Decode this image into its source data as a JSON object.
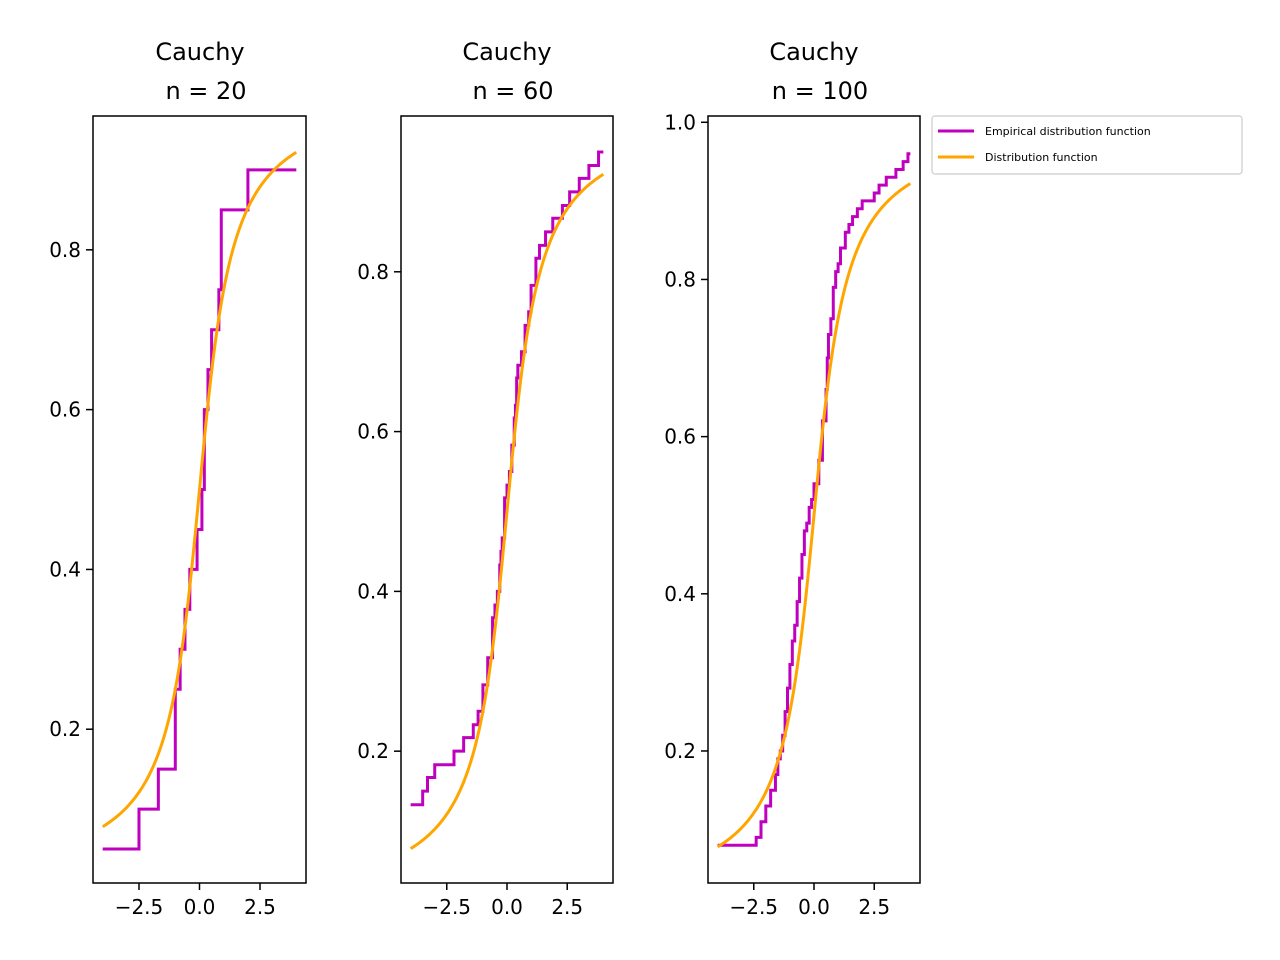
{
  "legend": {
    "entries": [
      {
        "label": "Empirical distribution function",
        "color": "#bf00bf"
      },
      {
        "label": "Distribution function",
        "color": "#ffa500"
      }
    ]
  },
  "chart_data": [
    {
      "type": "line",
      "title_line1": "Cauchy",
      "title_line2": "n = 20",
      "xlim": [
        -4.4,
        4.4
      ],
      "ylim": [
        0.0075,
        0.9675
      ],
      "xticks": [
        -2.5,
        0.0,
        2.5
      ],
      "xtick_labels": [
        "−2.5",
        "0.0",
        "2.5"
      ],
      "yticks": [
        0.2,
        0.4,
        0.6,
        0.8
      ],
      "ytick_labels": [
        "0.2",
        "0.4",
        "0.6",
        "0.8"
      ],
      "series": [
        {
          "name": "Empirical distribution function",
          "kind": "step",
          "x": [
            -4,
            -2.5,
            -1.7,
            -1.0,
            -0.8,
            -0.6,
            -0.4,
            -0.3,
            -0.1,
            0.1,
            0.2,
            0.35,
            0.5,
            0.8,
            0.9,
            2.0,
            4
          ],
          "y": [
            0.05,
            0.1,
            0.15,
            0.25,
            0.3,
            0.35,
            0.4,
            0.4,
            0.45,
            0.5,
            0.6,
            0.65,
            0.7,
            0.75,
            0.85,
            0.9,
            0.9
          ]
        },
        {
          "name": "Distribution function",
          "kind": "cauchy_cdf",
          "x_range": [
            -4,
            4
          ],
          "loc": 0,
          "scale": 1
        }
      ]
    },
    {
      "type": "line",
      "title_line1": "Cauchy",
      "title_line2": "n = 60",
      "xlim": [
        -4.4,
        4.4
      ],
      "ylim": [
        0.035,
        0.995
      ],
      "xticks": [
        -2.5,
        0.0,
        2.5
      ],
      "xtick_labels": [
        "−2.5",
        "0.0",
        "2.5"
      ],
      "yticks": [
        0.2,
        0.4,
        0.6,
        0.8
      ],
      "ytick_labels": [
        "0.2",
        "0.4",
        "0.6",
        "0.8"
      ],
      "series": [
        {
          "name": "Empirical distribution function",
          "kind": "step",
          "x": [
            -4,
            -3.5,
            -3.3,
            -3.0,
            -2.2,
            -1.8,
            -1.4,
            -1.2,
            -1.0,
            -0.8,
            -0.6,
            -0.5,
            -0.4,
            -0.3,
            -0.25,
            -0.2,
            -0.1,
            0.0,
            0.1,
            0.2,
            0.3,
            0.35,
            0.4,
            0.45,
            0.5,
            0.6,
            0.75,
            0.9,
            1.0,
            1.2,
            1.35,
            1.6,
            1.9,
            2.3,
            2.6,
            3.0,
            3.4,
            3.8,
            4
          ],
          "y": [
            0.133,
            0.15,
            0.167,
            0.183,
            0.2,
            0.217,
            0.233,
            0.25,
            0.283,
            0.317,
            0.367,
            0.383,
            0.4,
            0.433,
            0.45,
            0.467,
            0.517,
            0.533,
            0.55,
            0.583,
            0.617,
            0.633,
            0.667,
            0.683,
            0.683,
            0.7,
            0.733,
            0.75,
            0.783,
            0.817,
            0.833,
            0.85,
            0.867,
            0.883,
            0.9,
            0.917,
            0.933,
            0.95,
            0.95
          ]
        },
        {
          "name": "Distribution function",
          "kind": "cauchy_cdf",
          "x_range": [
            -4,
            4
          ],
          "loc": 0,
          "scale": 1
        }
      ]
    },
    {
      "type": "line",
      "title_line1": "Cauchy",
      "title_line2": "n = 100",
      "xlim": [
        -4.4,
        4.4
      ],
      "ylim": [
        0.032,
        1.008
      ],
      "xticks": [
        -2.5,
        0.0,
        2.5
      ],
      "xtick_labels": [
        "−2.5",
        "0.0",
        "2.5"
      ],
      "yticks": [
        0.2,
        0.4,
        0.6,
        0.8,
        1.0
      ],
      "ytick_labels": [
        "0.2",
        "0.4",
        "0.6",
        "0.8",
        "1.0"
      ],
      "series": [
        {
          "name": "Empirical distribution function",
          "kind": "step",
          "x": [
            -4,
            -3.6,
            -2.4,
            -2.2,
            -2.0,
            -1.8,
            -1.6,
            -1.5,
            -1.4,
            -1.3,
            -1.2,
            -1.1,
            -1.0,
            -0.9,
            -0.8,
            -0.7,
            -0.6,
            -0.5,
            -0.4,
            -0.3,
            -0.2,
            -0.1,
            0.0,
            0.2,
            0.35,
            0.5,
            0.55,
            0.6,
            0.7,
            0.8,
            0.9,
            1.0,
            1.1,
            1.3,
            1.45,
            1.6,
            1.8,
            2.0,
            2.5,
            2.7,
            3.0,
            3.4,
            3.7,
            3.9,
            4
          ],
          "y": [
            0.08,
            0.08,
            0.09,
            0.11,
            0.13,
            0.15,
            0.17,
            0.19,
            0.2,
            0.22,
            0.25,
            0.28,
            0.31,
            0.34,
            0.36,
            0.39,
            0.42,
            0.45,
            0.48,
            0.49,
            0.51,
            0.52,
            0.54,
            0.57,
            0.62,
            0.66,
            0.7,
            0.73,
            0.75,
            0.79,
            0.81,
            0.82,
            0.84,
            0.86,
            0.87,
            0.88,
            0.89,
            0.9,
            0.91,
            0.92,
            0.93,
            0.94,
            0.95,
            0.96,
            0.96
          ]
        },
        {
          "name": "Distribution function",
          "kind": "cauchy_cdf",
          "x_range": [
            -4,
            4
          ],
          "loc": 0,
          "scale": 1
        }
      ]
    }
  ]
}
